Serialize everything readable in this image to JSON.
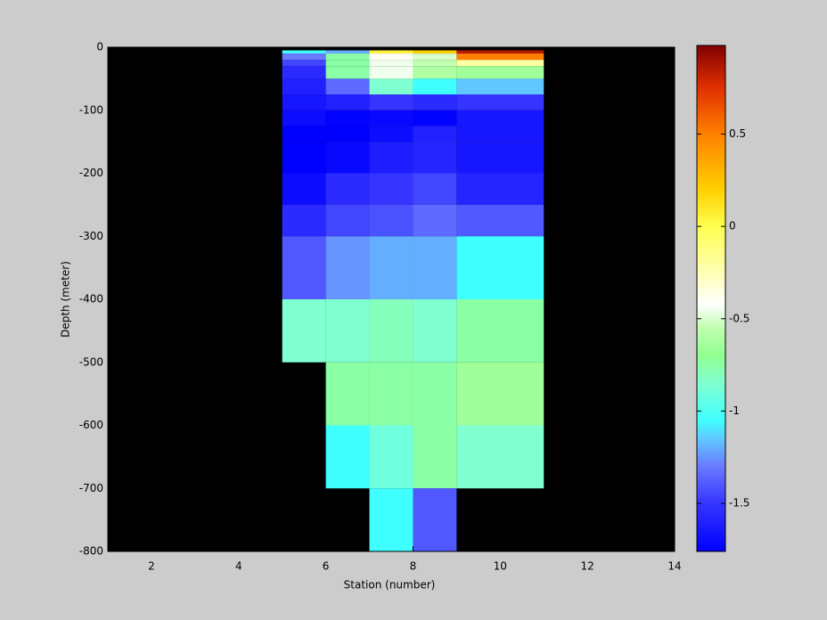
{
  "chart_data": {
    "type": "heatmap",
    "xlabel": "Station (number)",
    "ylabel": "Depth (meter)",
    "xlim": [
      1,
      14
    ],
    "xticks": [
      2,
      4,
      6,
      8,
      10,
      12,
      14
    ],
    "ylim": [
      -800,
      0
    ],
    "yticks": [
      0,
      -100,
      -200,
      -300,
      -400,
      -500,
      -600,
      -700,
      -800
    ],
    "background": "#000000",
    "x_edges": [
      5,
      6,
      7,
      8,
      9,
      11
    ],
    "y_edges": [
      -5,
      -10,
      -20,
      -30,
      -50,
      -75,
      -100,
      -125,
      -150,
      -200,
      -250,
      -300,
      -400,
      -500,
      -600,
      -700,
      -800
    ],
    "z": [
      [
        -1.05,
        -1.2,
        0.05,
        0.2,
        0.85
      ],
      [
        -1.3,
        -0.75,
        -0.4,
        -0.5,
        0.5
      ],
      [
        -1.45,
        -0.75,
        -0.45,
        -0.55,
        -0.2
      ],
      [
        -1.55,
        -0.75,
        -0.45,
        -0.6,
        -0.65
      ],
      [
        -1.6,
        -1.35,
        -0.85,
        -1.05,
        -1.15
      ],
      [
        -1.65,
        -1.6,
        -1.5,
        -1.55,
        -1.5
      ],
      [
        -1.7,
        -1.75,
        -1.72,
        -1.75,
        -1.65
      ],
      [
        -1.76,
        -1.76,
        -1.7,
        -1.6,
        -1.65
      ],
      [
        -1.76,
        -1.72,
        -1.62,
        -1.58,
        -1.65
      ],
      [
        -1.7,
        -1.55,
        -1.5,
        -1.45,
        -1.58
      ],
      [
        -1.55,
        -1.45,
        -1.42,
        -1.35,
        -1.4
      ],
      [
        -1.4,
        -1.25,
        -1.2,
        -1.2,
        -1.05
      ],
      [
        -0.85,
        -0.85,
        -0.8,
        -0.85,
        -0.75
      ],
      [
        null,
        -0.75,
        -0.75,
        -0.75,
        -0.65
      ],
      [
        null,
        -1.05,
        -0.9,
        -0.75,
        -0.85
      ],
      [
        null,
        null,
        -1.05,
        -1.4,
        null
      ]
    ],
    "clim": [
      -1.76,
      0.98
    ],
    "cticks": [
      -1.5,
      -1,
      -0.5,
      0,
      0.5
    ],
    "colormap": [
      [
        -1.76,
        "#0000ff"
      ],
      [
        -1.5,
        "#3535ff"
      ],
      [
        -1.3,
        "#6a7aff"
      ],
      [
        -1.15,
        "#60c8ff"
      ],
      [
        -1.05,
        "#40ffff"
      ],
      [
        -0.85,
        "#80ffd0"
      ],
      [
        -0.7,
        "#90ff90"
      ],
      [
        -0.55,
        "#c0ffb0"
      ],
      [
        -0.42,
        "#ffffff"
      ],
      [
        -0.2,
        "#ffffa0"
      ],
      [
        0,
        "#ffff50"
      ],
      [
        0.2,
        "#ffd000"
      ],
      [
        0.5,
        "#ff8000"
      ],
      [
        0.75,
        "#e03000"
      ],
      [
        0.98,
        "#800000"
      ]
    ]
  }
}
